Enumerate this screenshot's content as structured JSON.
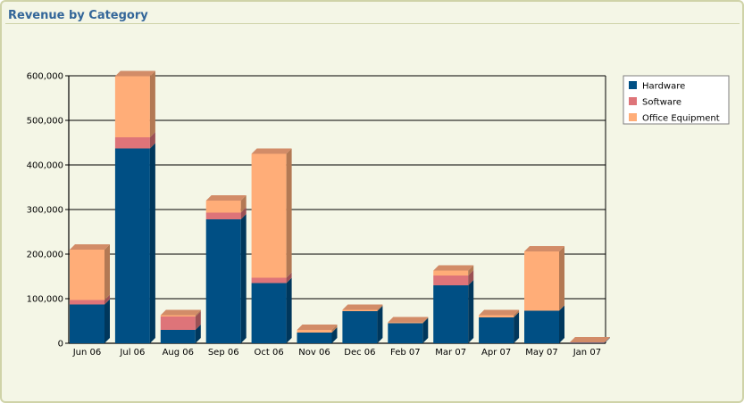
{
  "panel": {
    "title": "Revenue by Category"
  },
  "colors": {
    "Hardware": "#004f84",
    "Software": "#de7479",
    "Office Equipment": "#ffad78"
  },
  "chart_data": {
    "type": "bar",
    "stacked": true,
    "style": "3d",
    "categories": [
      "Jun 06",
      "Jul 06",
      "Aug 06",
      "Sep 06",
      "Oct 06",
      "Nov 06",
      "Dec 06",
      "Feb 07",
      "Mar 07",
      "Apr 07",
      "May 07",
      "Jan 07"
    ],
    "series": [
      {
        "name": "Hardware",
        "values": [
          87000,
          437000,
          30000,
          278000,
          135000,
          24000,
          72000,
          45000,
          130000,
          58000,
          73000,
          1000
        ]
      },
      {
        "name": "Software",
        "values": [
          10000,
          25000,
          30000,
          15000,
          12000,
          0,
          0,
          0,
          22000,
          0,
          0,
          1000
        ]
      },
      {
        "name": "Office Equipment",
        "values": [
          113000,
          137000,
          3000,
          27000,
          278000,
          6000,
          3000,
          2000,
          11000,
          5000,
          133000,
          0
        ]
      }
    ],
    "yticks": [
      "0",
      "100,000",
      "200,000",
      "300,000",
      "400,000",
      "500,000",
      "600,000"
    ],
    "ylim": [
      0,
      600000
    ],
    "grid": true,
    "legend_position": "top-right"
  }
}
